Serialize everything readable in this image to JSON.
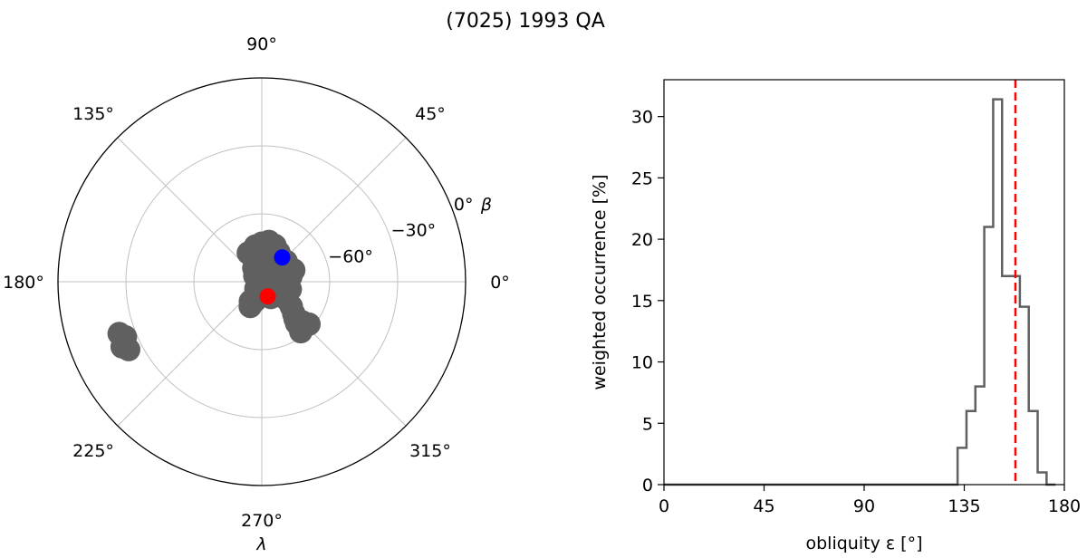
{
  "figure_title": "(7025) 1993 QA",
  "chart_data": [
    {
      "type": "scatter",
      "projection": "polar",
      "description_level": "pole solutions in ecliptic longitude/latitude",
      "angular_ticks": [
        {
          "angle": 0,
          "label": "0°"
        },
        {
          "angle": 45,
          "label": "45°"
        },
        {
          "angle": 90,
          "label": "90°"
        },
        {
          "angle": 135,
          "label": "135°"
        },
        {
          "angle": 180,
          "label": "180°"
        },
        {
          "angle": 225,
          "label": "225°"
        },
        {
          "angle": 270,
          "label": "270°"
        },
        {
          "angle": 315,
          "label": "315°"
        }
      ],
      "radial_ticks": [
        {
          "beta": -60,
          "label": "−60°"
        },
        {
          "beta": -30,
          "label": "−30°"
        },
        {
          "beta": 0,
          "label": "0°"
        }
      ],
      "beta_range": [
        -90,
        0
      ],
      "xlabel": "λ",
      "rlabel": "β",
      "grid": true,
      "colors": {
        "cloud": "#606060",
        "blue_point": "#0000ff",
        "red_point": "#ff0000",
        "grid": "#c0c0c0"
      },
      "cloud_points": [
        {
          "lambda": 90,
          "beta": -73
        },
        {
          "lambda": 80,
          "beta": -72
        },
        {
          "lambda": 70,
          "beta": -73
        },
        {
          "lambda": 60,
          "beta": -75
        },
        {
          "lambda": 100,
          "beta": -74
        },
        {
          "lambda": 110,
          "beta": -78
        },
        {
          "lambda": 95,
          "beta": -78
        },
        {
          "lambda": 75,
          "beta": -79
        },
        {
          "lambda": 50,
          "beta": -79
        },
        {
          "lambda": 120,
          "beta": -83
        },
        {
          "lambda": 140,
          "beta": -86
        },
        {
          "lambda": 60,
          "beta": -82
        },
        {
          "lambda": 30,
          "beta": -80
        },
        {
          "lambda": 20,
          "beta": -82
        },
        {
          "lambda": 40,
          "beta": -76
        },
        {
          "lambda": 85,
          "beta": -84
        },
        {
          "lambda": 100,
          "beta": -86
        },
        {
          "lambda": 20,
          "beta": -75
        },
        {
          "lambda": 10,
          "beta": -77
        },
        {
          "lambda": 35,
          "beta": -85
        },
        {
          "lambda": 55,
          "beta": -87
        },
        {
          "lambda": 115,
          "beta": -76
        },
        {
          "lambda": 320,
          "beta": -83
        },
        {
          "lambda": 330,
          "beta": -82
        },
        {
          "lambda": 340,
          "beta": -80
        },
        {
          "lambda": 350,
          "beta": -80
        },
        {
          "lambda": 310,
          "beta": -87
        },
        {
          "lambda": 345,
          "beta": -77
        },
        {
          "lambda": 335,
          "beta": -78
        },
        {
          "lambda": 290,
          "beta": -85
        },
        {
          "lambda": 300,
          "beta": -82
        },
        {
          "lambda": 280,
          "beta": -84
        },
        {
          "lambda": 270,
          "beta": -87
        },
        {
          "lambda": 260,
          "beta": -85
        },
        {
          "lambda": 250,
          "beta": -81
        },
        {
          "lambda": 240,
          "beta": -80
        },
        {
          "lambda": 245,
          "beta": -78
        },
        {
          "lambda": 200,
          "beta": -88
        },
        {
          "lambda": 230,
          "beta": -86
        },
        {
          "lambda": 325,
          "beta": -77
        },
        {
          "lambda": 320,
          "beta": -73
        },
        {
          "lambda": 315,
          "beta": -70
        },
        {
          "lambda": 312,
          "beta": -68
        },
        {
          "lambda": 315,
          "beta": -65
        },
        {
          "lambda": 313,
          "beta": -63
        },
        {
          "lambda": 308,
          "beta": -62
        },
        {
          "lambda": 318,
          "beta": -62
        },
        {
          "lambda": 310,
          "beta": -66
        },
        {
          "lambda": 203,
          "beta": -24
        },
        {
          "lambda": 200,
          "beta": -23
        },
        {
          "lambda": 205,
          "beta": -22
        },
        {
          "lambda": 202,
          "beta": -25
        },
        {
          "lambda": 207,
          "beta": -24
        }
      ],
      "highlight_points": [
        {
          "name": "blue",
          "lambda": 50,
          "beta": -76
        },
        {
          "name": "red",
          "lambda": 292,
          "beta": -83
        }
      ]
    },
    {
      "type": "histogram",
      "xlabel": "obliquity ε [°]",
      "ylabel": "weighted occurrence [%]",
      "xlim": [
        0,
        180
      ],
      "ylim": [
        0,
        33
      ],
      "xticks": [
        0,
        45,
        90,
        135,
        180
      ],
      "yticks": [
        0,
        5,
        10,
        15,
        20,
        25,
        30
      ],
      "bin_width": 4,
      "bins": [
        {
          "x0": 0,
          "x1": 132,
          "value": 0
        },
        {
          "x0": 132,
          "x1": 136,
          "value": 3
        },
        {
          "x0": 136,
          "x1": 140,
          "value": 6
        },
        {
          "x0": 140,
          "x1": 144,
          "value": 8
        },
        {
          "x0": 144,
          "x1": 148,
          "value": 21
        },
        {
          "x0": 148,
          "x1": 152,
          "value": 31.4
        },
        {
          "x0": 152,
          "x1": 156,
          "value": 17
        },
        {
          "x0": 156,
          "x1": 160,
          "value": 17
        },
        {
          "x0": 160,
          "x1": 164,
          "value": 14.5
        },
        {
          "x0": 164,
          "x1": 168,
          "value": 6
        },
        {
          "x0": 168,
          "x1": 172,
          "value": 1
        },
        {
          "x0": 172,
          "x1": 176,
          "value": 0
        }
      ],
      "reference_line": {
        "x": 158,
        "style": "dashed",
        "color": "#ff0000"
      },
      "line_color": "#606060"
    }
  ]
}
